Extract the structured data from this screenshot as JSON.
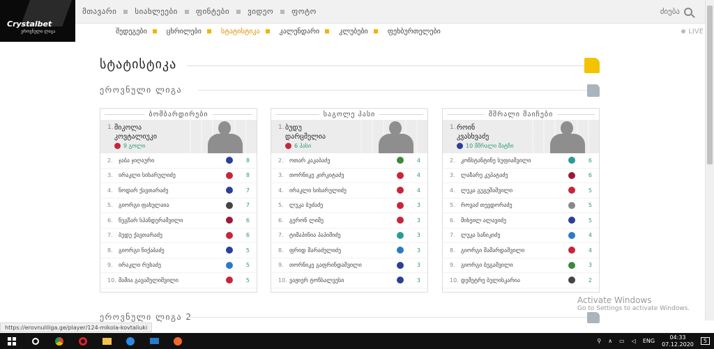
{
  "brand": {
    "name": "Crystalbet",
    "sub": "ეროვნული ლიგა"
  },
  "topnav": {
    "items": [
      "მთავარი",
      "სიახლეები",
      "ფინტები",
      "ვიდეო",
      "ფოტო"
    ],
    "search_label": "ძიება"
  },
  "subnav": {
    "items": [
      "შედეგები",
      "ცხრილები",
      "სტატისტიკა",
      "კალენდარი",
      "კლუბები",
      "ფეხბურთელები"
    ],
    "active_index": 2,
    "live_label": "LIVE"
  },
  "page": {
    "title": "სტატისტიკა",
    "league1": "ეროვნული ლიგა",
    "league2": "ეროვნული ლიგა 2"
  },
  "colors": {
    "accent": "#f4c300",
    "value": "#2a9a6a"
  },
  "cards": [
    {
      "title": "ბომბარდირები",
      "top": {
        "num": "1.",
        "name1": "მიკოლა",
        "name2": "კოვტალიუკი",
        "stat": "9 გოლი",
        "badge": "#c8253a"
      },
      "rows": [
        {
          "n": "2.",
          "name": "ჯაბა ჯიღაური",
          "v": "8",
          "badge": "#2a3f9a"
        },
        {
          "n": "3.",
          "name": "ირაკლი სიხარულიძე",
          "v": "8",
          "badge": "#c8253a"
        },
        {
          "n": "4.",
          "name": "ნოდარ ქავთარაძე",
          "v": "7",
          "badge": "#2a3f9a"
        },
        {
          "n": "5.",
          "name": "გიორგი ფახულაია",
          "v": "7",
          "badge": "#444444"
        },
        {
          "n": "6.",
          "name": "ნუგზარ სპანდერაშვილი",
          "v": "6",
          "badge": "#9a1a3a"
        },
        {
          "n": "7.",
          "name": "ბუდუ ქავთარაძე",
          "v": "6",
          "badge": "#c8253a"
        },
        {
          "n": "8.",
          "name": "გიორგი ნიქაბაძე",
          "v": "5",
          "badge": "#2a3f9a"
        },
        {
          "n": "9.",
          "name": "ირაკლი რუხაძე",
          "v": "5",
          "badge": "#2a7ac8"
        },
        {
          "n": "10.",
          "name": "მამია გავაშელიშვილი",
          "v": "5",
          "badge": "#c8253a"
        }
      ]
    },
    {
      "title": "საგოლე პასი",
      "top": {
        "num": "1.",
        "name1": "ბუდუ",
        "name2": "დარცმელია",
        "stat": "6 პასი",
        "badge": "#c8253a"
      },
      "rows": [
        {
          "n": "2.",
          "name": "ოთარ კაკაბაძე",
          "v": "4",
          "badge": "#3a8a3a"
        },
        {
          "n": "3.",
          "name": "თორნიკე კირკიტაძე",
          "v": "4",
          "badge": "#c8253a"
        },
        {
          "n": "4.",
          "name": "ირაკლი სიხარულიძე",
          "v": "4",
          "badge": "#c8253a"
        },
        {
          "n": "5.",
          "name": "ლუკა ბუძაძე",
          "v": "3",
          "badge": "#c8253a"
        },
        {
          "n": "6.",
          "name": "გერონ ლიმე",
          "v": "3",
          "badge": "#c8253a"
        },
        {
          "n": "7.",
          "name": "ტიმაპინია პაპიშიძე",
          "v": "3",
          "badge": "#2a9a9a"
        },
        {
          "n": "8.",
          "name": "ფრიდ მარაძელიძე",
          "v": "3",
          "badge": "#2a7ac8"
        },
        {
          "n": "9.",
          "name": "თორნიკე გაფრინდაშვილი",
          "v": "3",
          "badge": "#2a3f9a"
        },
        {
          "n": "10.",
          "name": "ვაჟიერ ტონსალვესი",
          "v": "3",
          "badge": "#2a3f9a"
        }
      ]
    },
    {
      "title": "მშრალი მაიჩები",
      "top": {
        "num": "1.",
        "name1": "როინ",
        "name2": "კვასხვაძე",
        "stat": "10 მშრალი მატჩი",
        "badge": "#2a3f9a"
      },
      "rows": [
        {
          "n": "2.",
          "name": "კონსტანტინე სუფიაშვილი",
          "v": "6",
          "badge": "#2a9a9a"
        },
        {
          "n": "3.",
          "name": "ლაზარე კუპატაძე",
          "v": "6",
          "badge": "#9a1a3a"
        },
        {
          "n": "4.",
          "name": "ლუკა გუგეშაშვილი",
          "v": "5",
          "badge": "#c8253a"
        },
        {
          "n": "5.",
          "name": "როვაძ თევდორაძე",
          "v": "5",
          "badge": "#888888"
        },
        {
          "n": "6.",
          "name": "მიხეილ ალავიძე",
          "v": "5",
          "badge": "#2a3f9a"
        },
        {
          "n": "7.",
          "name": "ლუკა სანიკიძე",
          "v": "4",
          "badge": "#2a7ac8"
        },
        {
          "n": "8.",
          "name": "გიორგი მამარდაშვილი",
          "v": "4",
          "badge": "#c8253a"
        },
        {
          "n": "9.",
          "name": "გიორგი ბეგაშვილი",
          "v": "3",
          "badge": "#3a8a3a"
        },
        {
          "n": "10.",
          "name": "დემეტრე ბულისკარია",
          "v": "2",
          "badge": "#444444"
        }
      ]
    }
  ],
  "status_url": "https://erovnuliliga.ge/player/124-mikola-kovtaliuki",
  "watermark": {
    "line1": "Activate Windows",
    "line2": "Go to Settings to activate Windows."
  },
  "taskbar": {
    "lang": "ENG",
    "time": "04:33",
    "date": "07.12.2020",
    "notif_count": "5"
  }
}
